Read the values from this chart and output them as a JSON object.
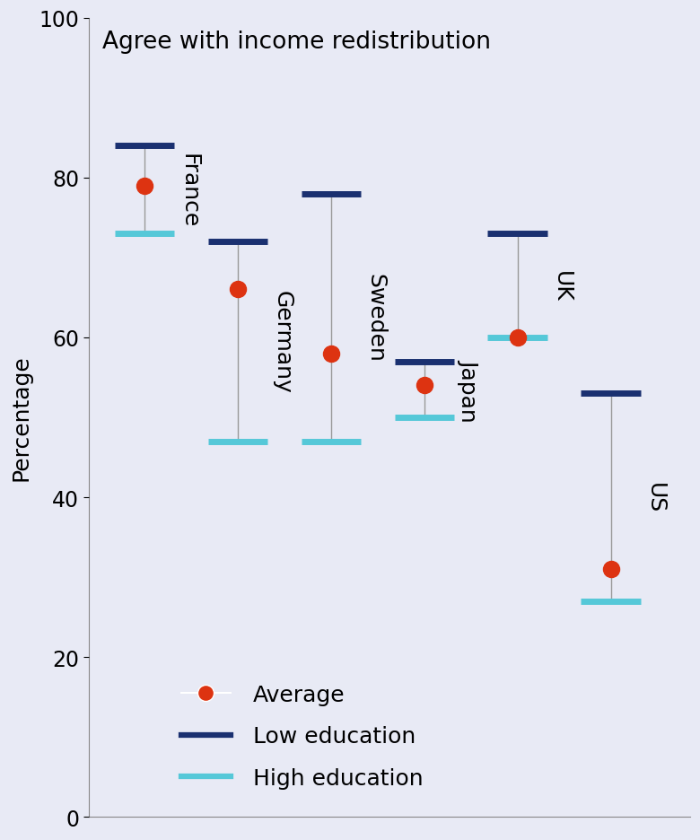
{
  "countries": [
    "France",
    "Germany",
    "Sweden",
    "Japan",
    "UK",
    "US"
  ],
  "low_education": [
    84,
    72,
    78,
    57,
    73,
    53
  ],
  "high_education": [
    73,
    47,
    47,
    50,
    60,
    27
  ],
  "average": [
    79,
    66,
    58,
    54,
    60,
    31
  ],
  "title": "Agree with income redistribution",
  "ylabel": "Percentage",
  "ylim": [
    0,
    100
  ],
  "background_color": "#e8eaf5",
  "low_ed_color": "#1a3070",
  "high_ed_color": "#55c8d8",
  "avg_color": "#dd3311",
  "line_color": "#999999",
  "bar_half": 0.32,
  "tick_fontsize": 17,
  "label_fontsize": 18,
  "country_fontsize": 18,
  "title_fontsize": 19,
  "legend_fontsize": 18,
  "yticks": [
    0,
    20,
    40,
    60,
    80,
    100
  ]
}
